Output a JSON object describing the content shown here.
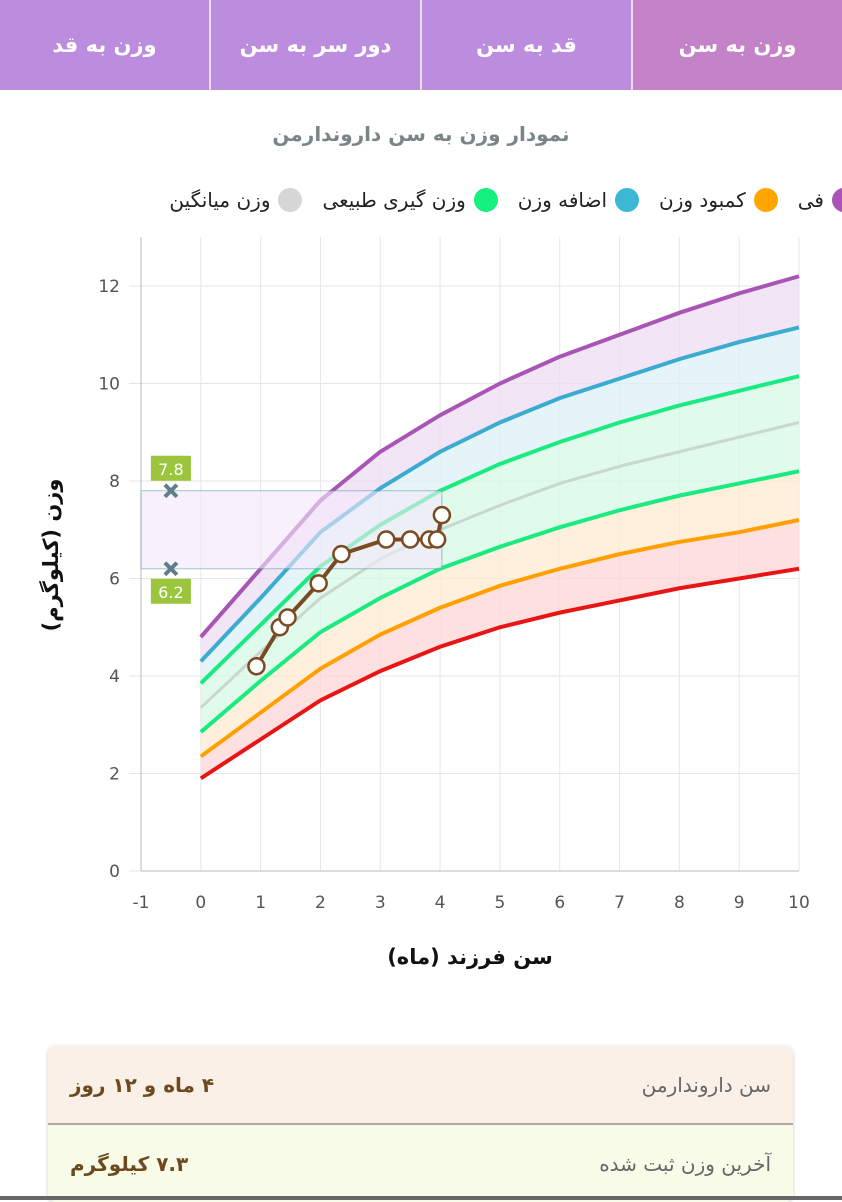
{
  "tabs": [
    {
      "label": "وزن به سن",
      "active": true
    },
    {
      "label": "قد به سن"
    },
    {
      "label": "دور سر به سن"
    },
    {
      "label": "وزن به قد"
    }
  ],
  "chart_title": "نمودار وزن به سن داروندارمن",
  "legend": [
    {
      "label": "فی",
      "color": "#a855b5"
    },
    {
      "label": "کمبود وزن",
      "color": "#ffa500"
    },
    {
      "label": "اضافه وزن",
      "color": "#3bb8d4"
    },
    {
      "label": "وزن گیری طبیعی",
      "color": "#16f07e"
    },
    {
      "label": "وزن میانگین",
      "color": "#d6d6d6"
    }
  ],
  "chart_data": {
    "type": "line",
    "xlabel": "سن فرزند (ماه)",
    "ylabel": "وزن (کیلوگرم)",
    "xlim": [
      -1,
      10
    ],
    "ylim": [
      0,
      12.6
    ],
    "xticks": [
      -1,
      0,
      1,
      2,
      3,
      4,
      5,
      6,
      7,
      8,
      9,
      10
    ],
    "yticks": [
      0,
      2,
      4,
      6,
      8,
      10,
      12
    ],
    "x": [
      0,
      1,
      2,
      3,
      4,
      5,
      6,
      7,
      8,
      9,
      10
    ],
    "series": [
      {
        "name": "top",
        "color": "#a855b5",
        "fill": "#eddcf3",
        "values": [
          4.8,
          6.2,
          7.6,
          8.6,
          9.35,
          10.0,
          10.55,
          11.0,
          11.45,
          11.85,
          12.2
        ]
      },
      {
        "name": "overweight",
        "color": "#3bacd0",
        "fill": "#dbf0f7",
        "values": [
          4.3,
          5.6,
          6.95,
          7.85,
          8.6,
          9.2,
          9.7,
          10.1,
          10.5,
          10.85,
          11.15
        ]
      },
      {
        "name": "normal-upper",
        "color": "#1aea80",
        "fill": "#d6f8e6",
        "values": [
          3.85,
          5.05,
          6.25,
          7.1,
          7.8,
          8.35,
          8.8,
          9.2,
          9.55,
          9.85,
          10.15
        ]
      },
      {
        "name": "mean",
        "color": "#c8d8cf",
        "fill": "#d6f8e6",
        "values": [
          3.35,
          4.5,
          5.6,
          6.4,
          7.0,
          7.5,
          7.95,
          8.3,
          8.6,
          8.9,
          9.2
        ]
      },
      {
        "name": "normal-lower",
        "color": "#1aea80",
        "fill": "#fdebd2",
        "values": [
          2.85,
          3.9,
          4.9,
          5.6,
          6.2,
          6.65,
          7.05,
          7.4,
          7.7,
          7.95,
          8.2
        ]
      },
      {
        "name": "underweight",
        "color": "#ffa000",
        "fill": "#ffd5d5",
        "values": [
          2.35,
          3.25,
          4.15,
          4.85,
          5.4,
          5.85,
          6.2,
          6.5,
          6.75,
          6.95,
          7.2
        ]
      },
      {
        "name": "severe",
        "color": "#e81515",
        "values": [
          1.9,
          2.7,
          3.5,
          4.1,
          4.6,
          5.0,
          5.3,
          5.55,
          5.8,
          6.0,
          6.2
        ]
      }
    ],
    "child": {
      "color": "#7a4a22",
      "points": [
        [
          0.93,
          4.2
        ],
        [
          1.32,
          5.0
        ],
        [
          1.45,
          5.2
        ],
        [
          1.97,
          5.9
        ],
        [
          2.35,
          6.5
        ],
        [
          3.1,
          6.8
        ],
        [
          3.5,
          6.8
        ],
        [
          3.82,
          6.8
        ],
        [
          3.95,
          6.8
        ],
        [
          4.03,
          7.3
        ]
      ]
    },
    "range": {
      "x": [
        -1,
        4.03
      ],
      "low": 6.2,
      "high": 7.8,
      "marker_x": -0.5,
      "low_label": "6.2",
      "high_label": "7.8"
    }
  },
  "summary": [
    {
      "label": "سن داروندارمن",
      "value": "۴ ماه و ۱۲ روز"
    },
    {
      "label": "آخرین وزن ثبت شده",
      "value": "۷.۳ کیلوگرم"
    }
  ]
}
